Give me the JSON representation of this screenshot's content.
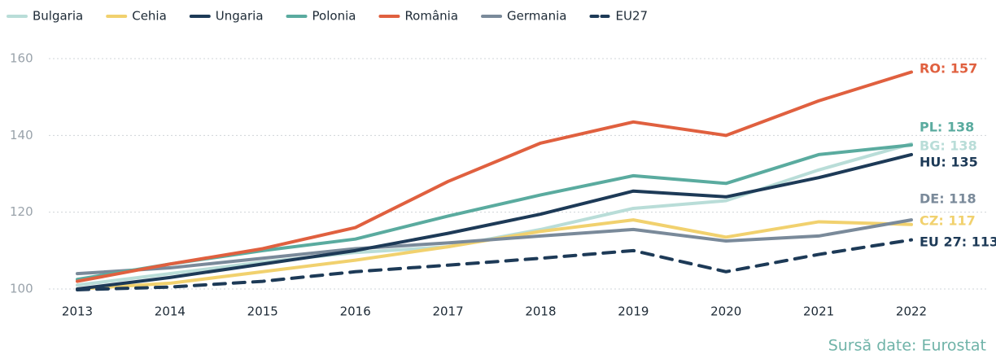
{
  "chart_data": {
    "type": "line",
    "x": [
      2013,
      2014,
      2015,
      2016,
      2017,
      2018,
      2019,
      2020,
      2021,
      2022
    ],
    "ylim": [
      100,
      160
    ],
    "yticks": [
      100,
      120,
      140,
      160
    ],
    "grid": true,
    "legend": "top",
    "source": "Sursă date: Eurostat",
    "series": [
      {
        "name": "Bulgaria",
        "color": "#b9ddd8",
        "dash": false,
        "end_label": "BG: 138",
        "values": [
          101,
          104,
          107,
          109.5,
          111,
          115.5,
          121,
          123,
          131,
          137.8
        ]
      },
      {
        "name": "Cehia",
        "color": "#f1d16e",
        "dash": false,
        "end_label": "CZ: 117",
        "values": [
          100,
          101.5,
          104.5,
          107.5,
          111,
          115,
          118,
          113.5,
          117.5,
          116.8
        ]
      },
      {
        "name": "Ungaria",
        "color": "#1d3a57",
        "dash": false,
        "end_label": "HU: 135",
        "values": [
          100,
          103,
          106.5,
          110,
          114.5,
          119.5,
          125.5,
          124,
          129,
          135
        ]
      },
      {
        "name": "Polonia",
        "color": "#5aab9f",
        "dash": false,
        "end_label": "PL: 138",
        "values": [
          102.5,
          106.5,
          110,
          113,
          119,
          124.5,
          129.5,
          127.5,
          135,
          137.5
        ]
      },
      {
        "name": "România",
        "color": "#e0603f",
        "dash": false,
        "end_label": "RO: 157",
        "values": [
          102,
          106.5,
          110.5,
          116,
          128,
          138,
          143.5,
          140,
          149,
          156.5
        ]
      },
      {
        "name": "Germania",
        "color": "#7a8a9a",
        "dash": false,
        "end_label": "DE: 118",
        "values": [
          104,
          105.5,
          108,
          110.5,
          112,
          113.8,
          115.5,
          112.5,
          113.8,
          118
        ]
      },
      {
        "name": "EU27",
        "color": "#1d3a57",
        "dash": true,
        "end_label": "EU 27: 113",
        "values": [
          99.8,
          100.5,
          102,
          104.5,
          106.2,
          108,
          110,
          104.5,
          109,
          112.8
        ]
      }
    ]
  }
}
